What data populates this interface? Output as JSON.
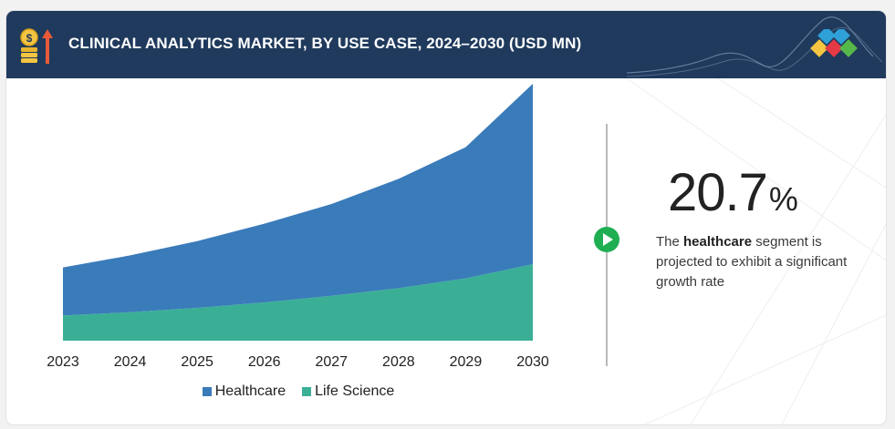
{
  "header": {
    "title": "CLINICAL ANALYTICS MARKET, BY USE CASE, 2024–2030 (USD MN)"
  },
  "colors": {
    "header_bg": "#1f3a5c",
    "healthcare": "#3a7bba",
    "life_science": "#3aaf96",
    "play_button": "#1fae52"
  },
  "icons": {
    "header": "coins-growth-icon",
    "logo": "diamond-logo-icon",
    "callout": "play-arrow-icon"
  },
  "chart_data": {
    "type": "area",
    "stacked": true,
    "categories": [
      "2023",
      "2024",
      "2025",
      "2026",
      "2027",
      "2028",
      "2029",
      "2030"
    ],
    "series": [
      {
        "name": "Life Science",
        "color": "#3aaf96",
        "values": [
          23,
          26,
          30,
          35,
          41,
          48,
          57,
          70
        ]
      },
      {
        "name": "Healthcare",
        "color": "#3a7bba",
        "values": [
          44,
          52,
          61,
          72,
          84,
          100,
          120,
          165
        ]
      }
    ],
    "ylim": [
      0,
      240
    ],
    "grid": false,
    "legend": "bottom-center"
  },
  "callout": {
    "value": "20.7",
    "unit": "%",
    "text_before": "The ",
    "text_bold": "healthcare",
    "text_after": " segment is projected to exhibit a significant growth rate"
  }
}
